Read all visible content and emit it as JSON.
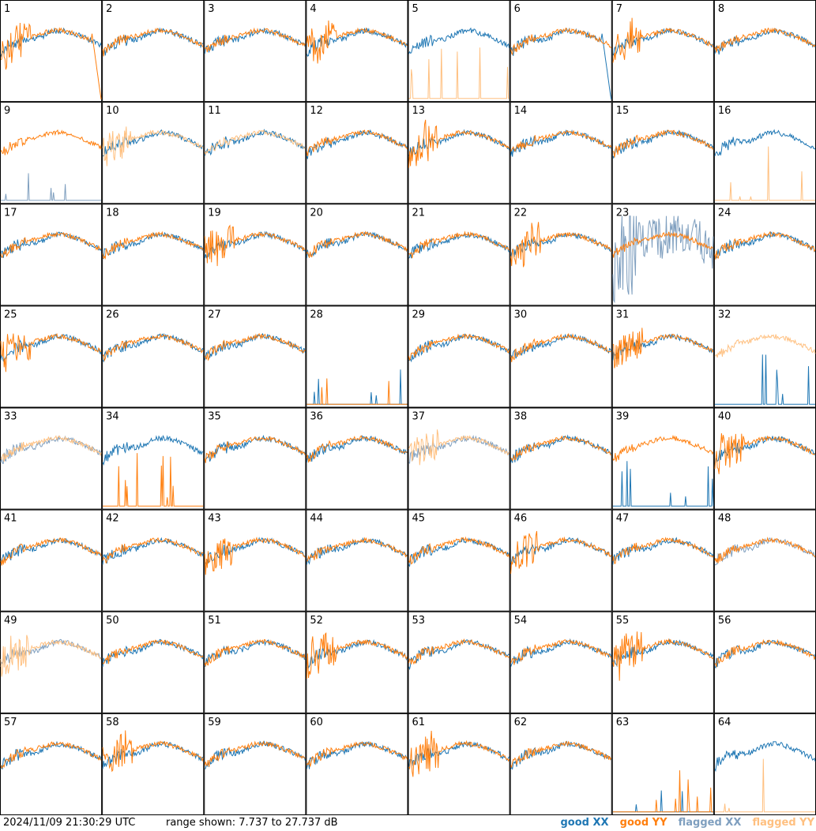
{
  "footer": {
    "timestamp": "2024/11/09 21:30:29 UTC",
    "range_text": "range shown: 7.737 to 27.737 dB"
  },
  "legend": {
    "good_xx": "good XX",
    "good_yy": "good YY",
    "flagged_xx": "flagged XX",
    "flagged_yy": "flagged YY"
  },
  "colors": {
    "good_xx": "#1f77b4",
    "good_yy": "#ff7f0e",
    "flagged_xx": "#7f9fbf",
    "flagged_yy": "#ffc080"
  },
  "chart_data": {
    "type": "line",
    "grid": "8x8 small multiples",
    "ylim_db": [
      7.737,
      27.737
    ],
    "panels": [
      {
        "label": "1",
        "xx": "good",
        "yy": "good",
        "note": "YY drops to floor at right"
      },
      {
        "label": "2",
        "xx": "good",
        "yy": "good"
      },
      {
        "label": "3",
        "xx": "good",
        "yy": "good"
      },
      {
        "label": "4",
        "xx": "good",
        "yy": "good"
      },
      {
        "label": "5",
        "xx": "good",
        "yy": "flagged",
        "note": "YY near floor"
      },
      {
        "label": "6",
        "xx": "good",
        "yy": "good",
        "note": "XX drops to floor at right"
      },
      {
        "label": "7",
        "xx": "good",
        "yy": "good"
      },
      {
        "label": "8",
        "xx": "good",
        "yy": "good"
      },
      {
        "label": "9",
        "xx": "flagged",
        "yy": "good",
        "note": "XX near floor"
      },
      {
        "label": "10",
        "xx": "good",
        "yy": "flagged"
      },
      {
        "label": "11",
        "xx": "good",
        "yy": "flagged"
      },
      {
        "label": "12",
        "xx": "good",
        "yy": "good"
      },
      {
        "label": "13",
        "xx": "good",
        "yy": "good"
      },
      {
        "label": "14",
        "xx": "good",
        "yy": "good"
      },
      {
        "label": "15",
        "xx": "good",
        "yy": "good"
      },
      {
        "label": "16",
        "xx": "good",
        "yy": "flagged",
        "note": "YY near floor"
      },
      {
        "label": "17",
        "xx": "good",
        "yy": "good"
      },
      {
        "label": "18",
        "xx": "good",
        "yy": "good"
      },
      {
        "label": "19",
        "xx": "good",
        "yy": "good"
      },
      {
        "label": "20",
        "xx": "good",
        "yy": "good"
      },
      {
        "label": "21",
        "xx": "good",
        "yy": "good"
      },
      {
        "label": "22",
        "xx": "good",
        "yy": "good"
      },
      {
        "label": "23",
        "xx": "flagged",
        "yy": "good",
        "note": "XX noisy"
      },
      {
        "label": "24",
        "xx": "good",
        "yy": "good"
      },
      {
        "label": "25",
        "xx": "good",
        "yy": "good"
      },
      {
        "label": "26",
        "xx": "good",
        "yy": "good"
      },
      {
        "label": "27",
        "xx": "good",
        "yy": "good"
      },
      {
        "label": "28",
        "xx": "good",
        "yy": "good",
        "note": "near floor"
      },
      {
        "label": "29",
        "xx": "good",
        "yy": "good"
      },
      {
        "label": "30",
        "xx": "good",
        "yy": "good"
      },
      {
        "label": "31",
        "xx": "good",
        "yy": "good"
      },
      {
        "label": "32",
        "xx": "good",
        "yy": "flagged",
        "note": "XX near floor"
      },
      {
        "label": "33",
        "xx": "flagged",
        "yy": "flagged"
      },
      {
        "label": "34",
        "xx": "good",
        "yy": "good",
        "note": "YY near floor"
      },
      {
        "label": "35",
        "xx": "good",
        "yy": "good"
      },
      {
        "label": "36",
        "xx": "good",
        "yy": "good"
      },
      {
        "label": "37",
        "xx": "flagged",
        "yy": "flagged"
      },
      {
        "label": "38",
        "xx": "good",
        "yy": "good"
      },
      {
        "label": "39",
        "xx": "good",
        "yy": "good",
        "note": "XX near floor"
      },
      {
        "label": "40",
        "xx": "good",
        "yy": "good"
      },
      {
        "label": "41",
        "xx": "good",
        "yy": "good"
      },
      {
        "label": "42",
        "xx": "good",
        "yy": "good"
      },
      {
        "label": "43",
        "xx": "good",
        "yy": "good"
      },
      {
        "label": "44",
        "xx": "good",
        "yy": "good"
      },
      {
        "label": "45",
        "xx": "good",
        "yy": "good"
      },
      {
        "label": "46",
        "xx": "good",
        "yy": "good"
      },
      {
        "label": "47",
        "xx": "good",
        "yy": "good"
      },
      {
        "label": "48",
        "xx": "flagged",
        "yy": "good"
      },
      {
        "label": "49",
        "xx": "flagged",
        "yy": "flagged"
      },
      {
        "label": "50",
        "xx": "good",
        "yy": "good"
      },
      {
        "label": "51",
        "xx": "good",
        "yy": "good"
      },
      {
        "label": "52",
        "xx": "good",
        "yy": "good"
      },
      {
        "label": "53",
        "xx": "good",
        "yy": "good"
      },
      {
        "label": "54",
        "xx": "good",
        "yy": "good"
      },
      {
        "label": "55",
        "xx": "good",
        "yy": "good"
      },
      {
        "label": "56",
        "xx": "good",
        "yy": "good"
      },
      {
        "label": "57",
        "xx": "good",
        "yy": "good"
      },
      {
        "label": "58",
        "xx": "good",
        "yy": "good"
      },
      {
        "label": "59",
        "xx": "good",
        "yy": "good"
      },
      {
        "label": "60",
        "xx": "good",
        "yy": "good"
      },
      {
        "label": "61",
        "xx": "good",
        "yy": "good"
      },
      {
        "label": "62",
        "xx": "good",
        "yy": "good"
      },
      {
        "label": "63",
        "xx": "good",
        "yy": "good",
        "note": "near floor"
      },
      {
        "label": "64",
        "xx": "good",
        "yy": "flagged",
        "note": "YY near floor"
      }
    ]
  }
}
